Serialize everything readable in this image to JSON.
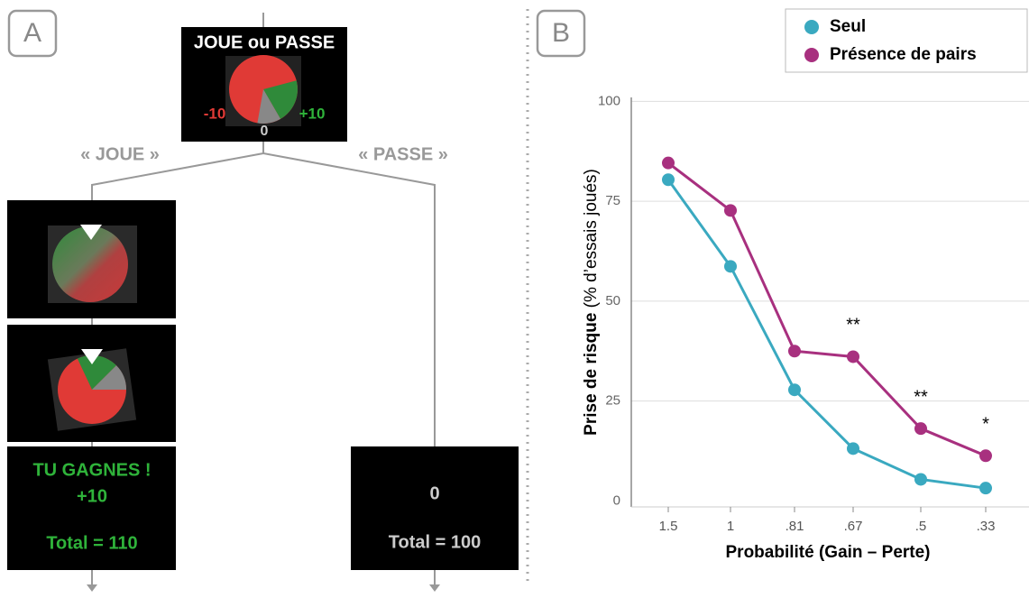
{
  "panel_a": {
    "label": "A",
    "top_box": {
      "title": "JOUE ou PASSE",
      "loss": "-10",
      "gain": "+10",
      "zero": "0"
    },
    "branches": {
      "play": "« JOUE »",
      "pass": "« PASSE »"
    },
    "play_result": {
      "line1": "TU GAGNES !",
      "line2": "+10",
      "total": "Total = 110"
    },
    "pass_result": {
      "line1": "0",
      "total": "Total = 100"
    }
  },
  "chart_data": {
    "type": "line",
    "panel_label": "B",
    "ylabel": "Prise de risque",
    "ylabel_detail": "(% d’essais joués)",
    "xlabel": "Probabilité (Gain – Perte)",
    "categories": [
      "1.5",
      "1",
      ".81",
      ".67",
      ".5",
      ".33"
    ],
    "series": [
      {
        "name": "Seul",
        "color": "#3aa9c0",
        "values": [
          80.4,
          58.7,
          27.8,
          13.1,
          5.4,
          3.2
        ]
      },
      {
        "name": "Présence de pairs",
        "color": "#a8307f",
        "values": [
          84.6,
          72.7,
          37.5,
          36.1,
          18.1,
          11.3
        ]
      }
    ],
    "annotations": [
      "**",
      "**",
      "*"
    ],
    "ylim": [
      -1.5,
      101
    ],
    "yticks": [
      0,
      25,
      50,
      75,
      100
    ],
    "grid": true,
    "legend": "top-right"
  }
}
